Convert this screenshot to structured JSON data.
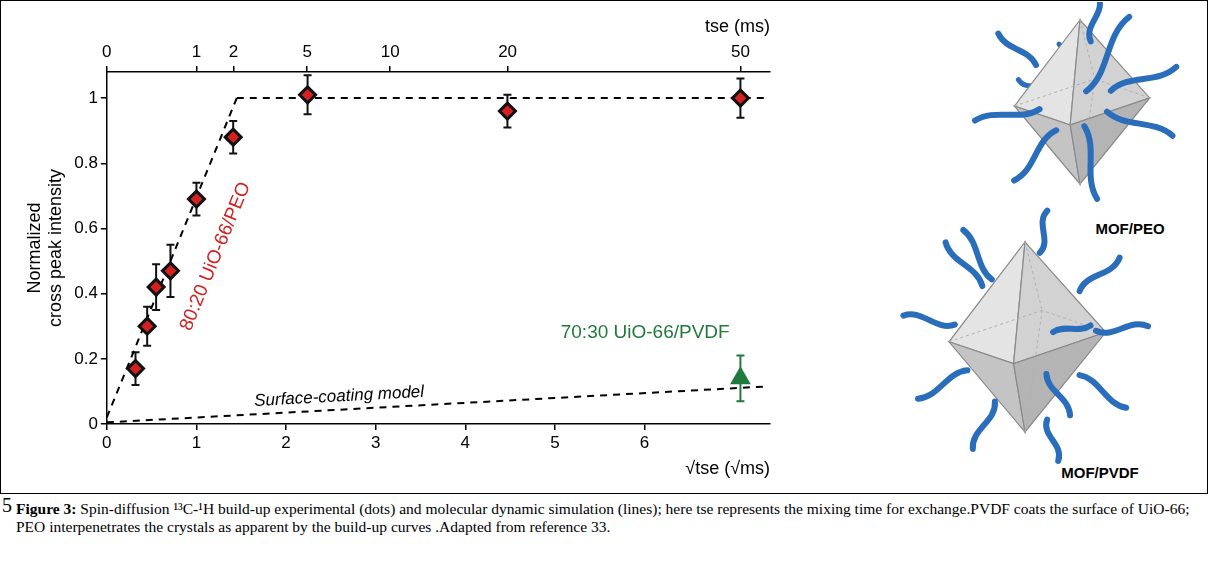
{
  "chart_data": {
    "type": "scatter",
    "y_label": [
      "Normalized",
      "cross peak intensity"
    ],
    "x_label": "√tse (√ms)",
    "x2_label": "tse (ms)",
    "xlim": [
      0,
      7.4
    ],
    "xticks": [
      0,
      1,
      2,
      3,
      4,
      5,
      6
    ],
    "x2lim": [
      0,
      54.76
    ],
    "x2ticks": [
      0,
      1,
      2,
      5,
      10,
      20,
      50
    ],
    "ylim": [
      0,
      1.08
    ],
    "yticks": [
      0,
      0.2,
      0.4,
      0.6,
      0.8,
      1
    ],
    "grid": false,
    "series": [
      {
        "name": "80:20 UiO-66/PEO",
        "type": "scatter",
        "marker": "diamond",
        "color": "#d42020",
        "x": [
          0.32,
          0.45,
          0.55,
          0.71,
          1,
          1.41,
          2.24,
          4.47,
          7.07
        ],
        "values": [
          0.17,
          0.3,
          0.42,
          0.47,
          0.69,
          0.88,
          1.01,
          0.96,
          1.0
        ],
        "errors": [
          0.05,
          0.06,
          0.07,
          0.08,
          0.05,
          0.05,
          0.06,
          0.05,
          0.06
        ]
      },
      {
        "name": "70:30 UiO-66/PVDF",
        "type": "scatter",
        "marker": "triangle",
        "color": "#1f7a3c",
        "x": [
          7.07
        ],
        "values": [
          0.14
        ],
        "errors": [
          0.07
        ]
      },
      {
        "type": "line",
        "line_style": "dashed",
        "color": "#000000",
        "x": [
          0,
          1.45
        ],
        "values": [
          0.02,
          1.0
        ]
      },
      {
        "type": "line",
        "line_style": "dashed",
        "color": "#000000",
        "x": [
          1.45,
          7.35
        ],
        "values": [
          1.0,
          1.0
        ]
      },
      {
        "name": "Surface-coating model",
        "type": "line",
        "line_style": "dashed",
        "color": "#000000",
        "x": [
          0,
          7.35
        ],
        "values": [
          0.005,
          0.115
        ]
      }
    ]
  },
  "illustrations": [
    {
      "label": "MOF/PEO"
    },
    {
      "label": "MOF/PVDF"
    }
  ],
  "caption": {
    "page_number": "5",
    "label": "Figure 3:",
    "text": "Spin-diffusion ¹³C-¹H build-up experimental (dots) and molecular dynamic simulation (lines); here tse represents the mixing time for exchange.PVDF coats the surface of UiO-66; PEO interpenetrates the crystals as apparent by the build-up curves .Adapted from reference 33."
  }
}
